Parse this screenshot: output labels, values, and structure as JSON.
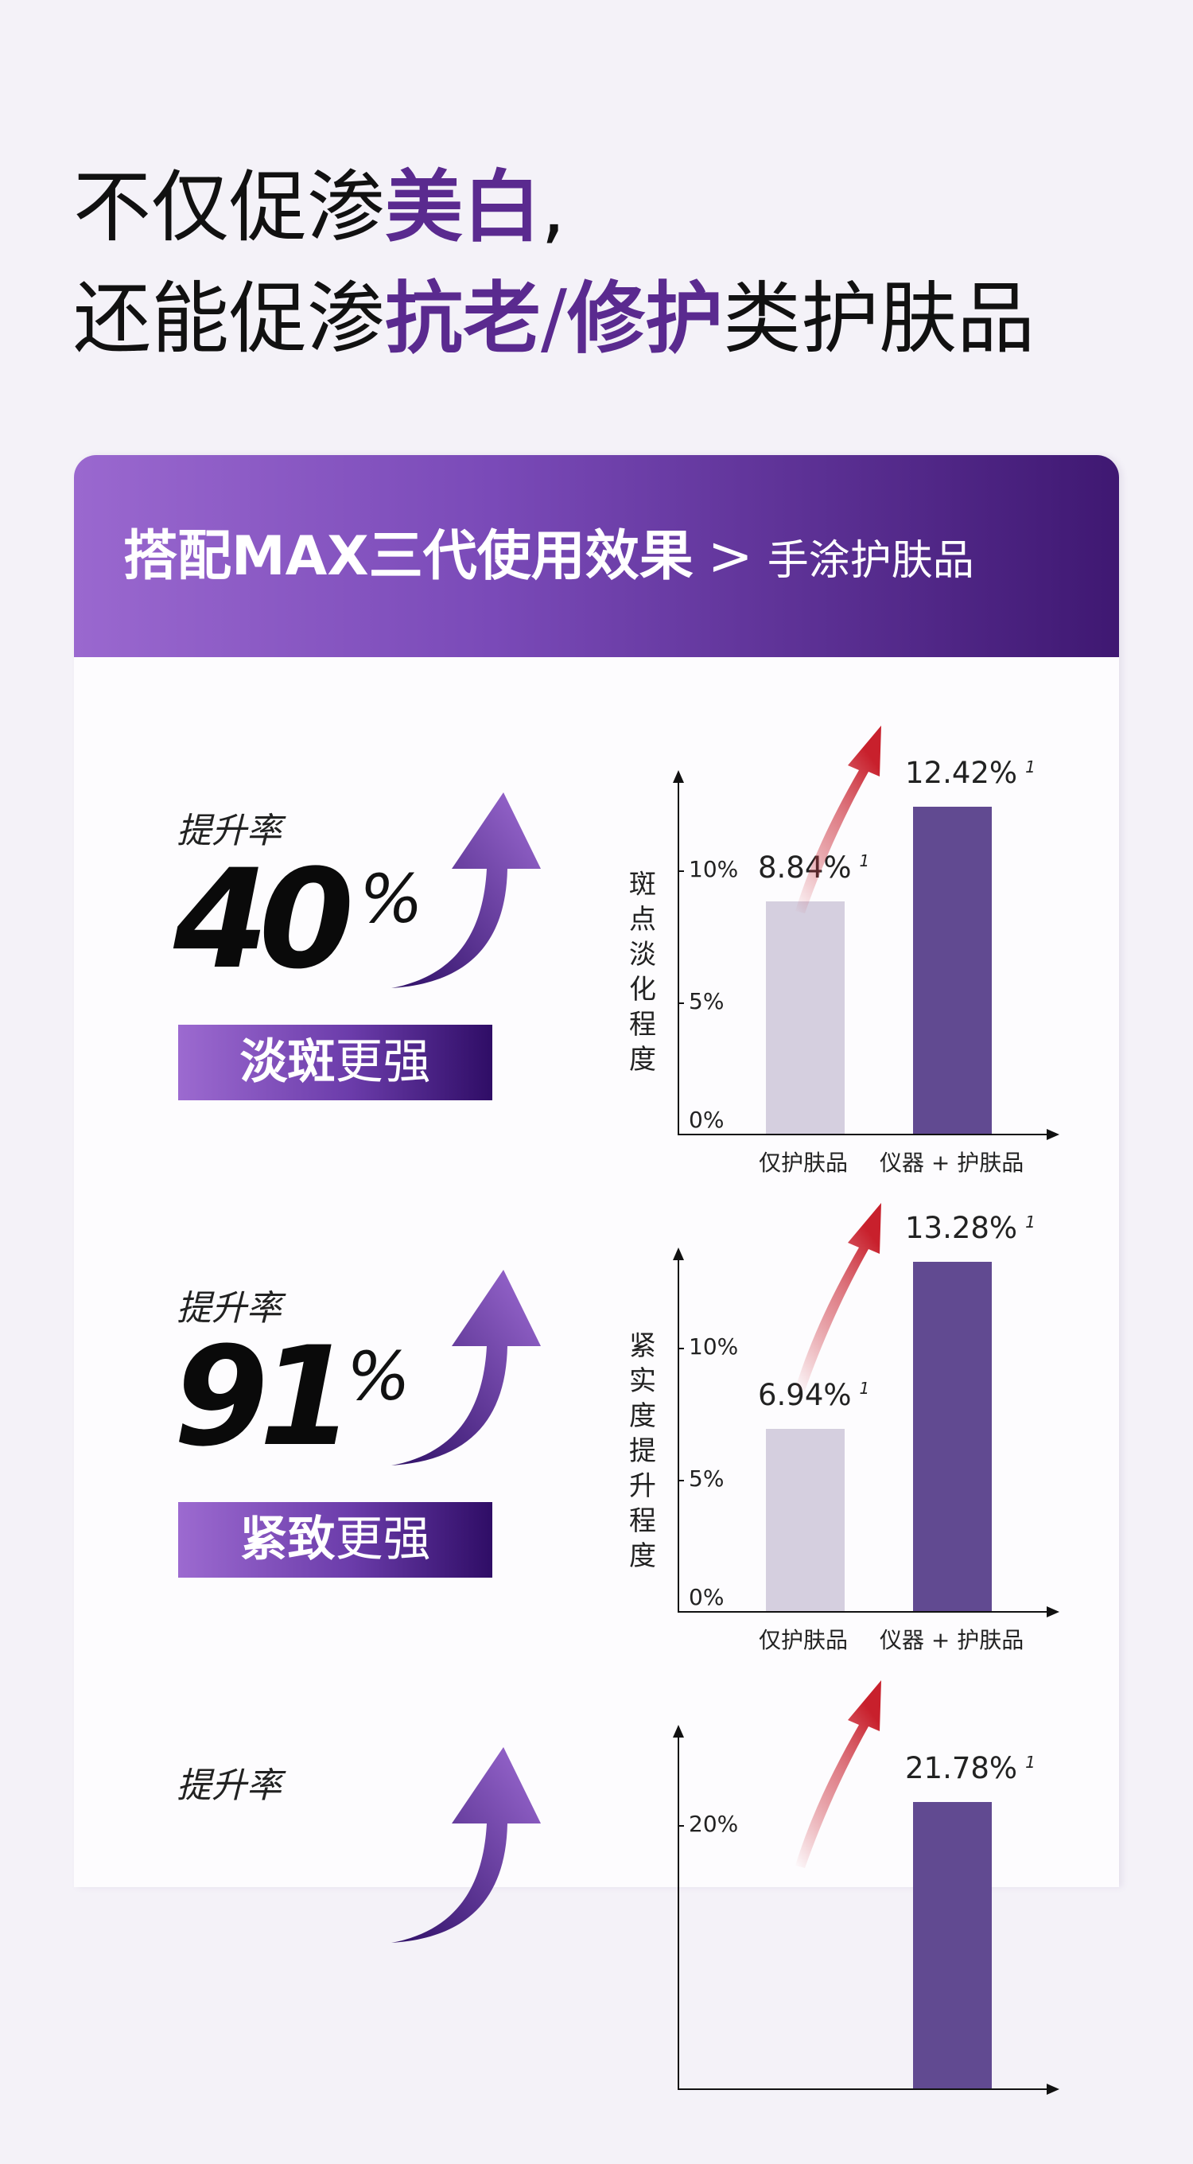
{
  "headline": {
    "line1": {
      "pre": "不仅促渗",
      "highlight": "美白",
      "post": ","
    },
    "line2": {
      "pre": "还能促渗",
      "highlight1": "抗老",
      "slash": "/",
      "highlight2": "修护",
      "post": "类护肤品"
    }
  },
  "card": {
    "title": "搭配MAX三代使用效果",
    "separator": ">",
    "subtitle": "手涂护肤品"
  },
  "colors": {
    "accent": "#5a2a8f",
    "bar_light": "#d5cfdf",
    "bar_dark": "#614a91",
    "arrow_red": "#c8202c"
  },
  "sections": [
    {
      "rate_label": "提升率",
      "rate_value": "40",
      "rate_unit": "%",
      "badge_bold": "淡斑",
      "badge_rest": "更强"
    },
    {
      "rate_label": "提升率",
      "rate_value": "91",
      "rate_unit": "%",
      "badge_bold": "紧致",
      "badge_rest": "更强"
    },
    {
      "rate_label": "提升率"
    }
  ],
  "chart_data": [
    {
      "type": "bar",
      "ylabel": "斑点淡化程度",
      "categories": [
        "仅护肤品",
        "仪器 + 护肤品"
      ],
      "values": [
        8.84,
        12.42
      ],
      "value_labels": [
        "8.84%",
        "12.42%"
      ],
      "footnote": "1",
      "yticks": [
        {
          "v": 0,
          "label": "0%"
        },
        {
          "v": 5,
          "label": "5%"
        },
        {
          "v": 10,
          "label": "10%"
        }
      ],
      "ylim": [
        0,
        13.4
      ]
    },
    {
      "type": "bar",
      "ylabel": "紧实度提升程度",
      "categories": [
        "仅护肤品",
        "仪器 + 护肤品"
      ],
      "values": [
        6.94,
        13.28
      ],
      "value_labels": [
        "6.94%",
        "13.28%"
      ],
      "footnote": "1",
      "yticks": [
        {
          "v": 0,
          "label": "0%"
        },
        {
          "v": 5,
          "label": "5%"
        },
        {
          "v": 10,
          "label": "10%"
        }
      ],
      "ylim": [
        0,
        13.4
      ]
    },
    {
      "type": "bar",
      "categories": [
        null,
        null
      ],
      "values": [
        null,
        21.78
      ],
      "value_labels": [
        null,
        "21.78%"
      ],
      "footnote": "1",
      "yticks": [
        {
          "v": 20,
          "label": "20%"
        }
      ],
      "ylim": [
        0,
        26.8
      ]
    }
  ]
}
